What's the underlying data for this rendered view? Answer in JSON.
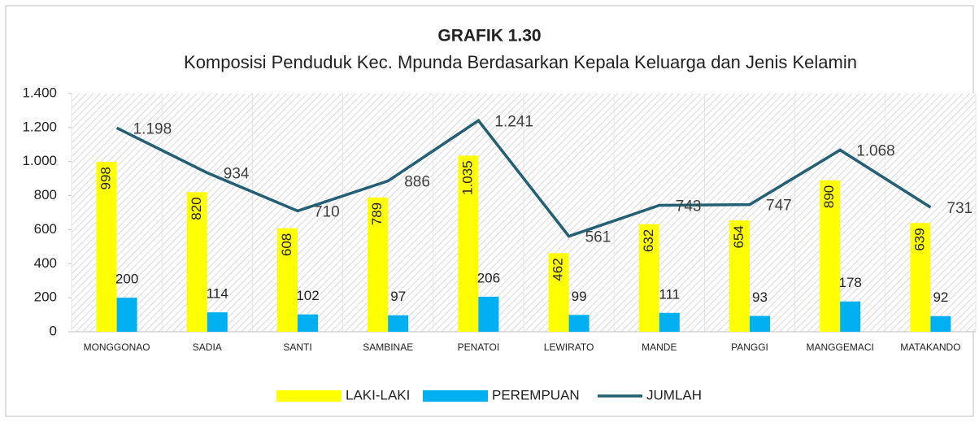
{
  "chart_data": {
    "type": "bar",
    "title": "GRAFIK 1.30",
    "subtitle": "Komposisi Penduduk Kec. Mpunda Berdasarkan Kepala Keluarga dan Jenis Kelamin",
    "categories": [
      "MONGGONAO",
      "SADIA",
      "SANTI",
      "SAMBINAE",
      "PENATOI",
      "LEWIRATO",
      "MANDE",
      "PANGGI",
      "MANGGEMACI",
      "MATAKANDO"
    ],
    "series": [
      {
        "name": "LAKI-LAKI",
        "color": "#ffff00",
        "values": [
          998,
          820,
          608,
          789,
          1035,
          462,
          632,
          654,
          890,
          639
        ],
        "value_labels": [
          "998",
          "820",
          "608",
          "789",
          "1.035",
          "462",
          "632",
          "654",
          "890",
          "639"
        ]
      },
      {
        "name": "PEREMPUAN",
        "color": "#00b0f0",
        "values": [
          200,
          114,
          102,
          97,
          206,
          99,
          111,
          93,
          178,
          92
        ],
        "value_labels": [
          "200",
          "114",
          "102",
          "97",
          "206",
          "99",
          "111",
          "93",
          "178",
          "92"
        ]
      },
      {
        "name": "JUMLAH",
        "type": "line",
        "color": "#235f75",
        "values": [
          1198,
          934,
          710,
          886,
          1241,
          561,
          743,
          747,
          1068,
          731
        ],
        "value_labels": [
          "1.198",
          "934",
          "710",
          "886",
          "1.241",
          "561",
          "743",
          "747",
          "1.068",
          "731"
        ]
      }
    ],
    "ylim": [
      0,
      1400
    ],
    "yticks": [
      0,
      200,
      400,
      600,
      800,
      {
        "value": 1000,
        "label": "1.000"
      },
      {
        "value": 1200,
        "label": "1.200"
      },
      {
        "value": 1400,
        "label": "1.400"
      }
    ],
    "legend": "bottom"
  }
}
